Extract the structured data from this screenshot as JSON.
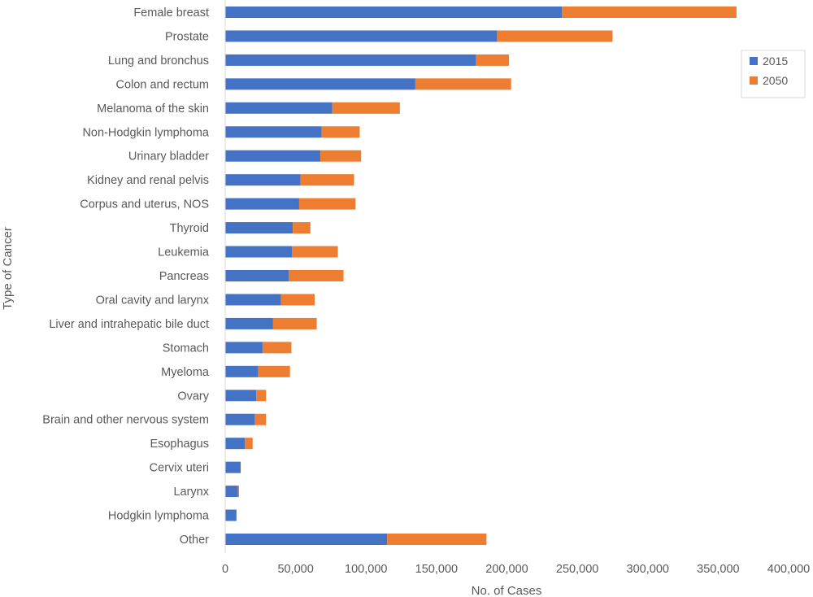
{
  "chart_data": {
    "type": "bar",
    "orientation": "horizontal",
    "stacked": true,
    "xlabel": "No. of Cases",
    "ylabel": "Type of Cancer",
    "xlim": [
      0,
      400000
    ],
    "xticks": [
      "0",
      "50,000",
      "100,000",
      "150,000",
      "200,000",
      "250,000",
      "300,000",
      "350,000",
      "400,000"
    ],
    "grid": false,
    "legend_position": "right",
    "categories": [
      "Female breast",
      "Prostate",
      "Lung and bronchus",
      "Colon and rectum",
      "Melanoma of the skin",
      "Non-Hodgkin lymphoma",
      "Urinary bladder",
      "Kidney and renal pelvis",
      "Corpus and uterus, NOS",
      "Thyroid",
      "Leukemia",
      "Pancreas",
      "Oral cavity and larynx",
      "Liver and intrahepatic bile duct",
      "Stomach",
      "Myeloma",
      "Ovary",
      "Brain and other nervous system",
      "Esophagus",
      "Cervix uteri",
      "Larynx",
      "Hodgkin lymphoma",
      "Other"
    ],
    "series": [
      {
        "name": "2015",
        "color": "#4472C4",
        "values": [
          239000,
          193000,
          178000,
          135000,
          76000,
          68500,
          67500,
          53500,
          52500,
          48000,
          47500,
          45000,
          39500,
          34000,
          26500,
          23500,
          22000,
          21000,
          14000,
          11000,
          9000,
          8000,
          115000
        ]
      },
      {
        "name": "2050",
        "color": "#ED7D31",
        "values": [
          124000,
          82000,
          23500,
          68000,
          48000,
          27000,
          29000,
          38000,
          40000,
          12500,
          32500,
          39000,
          24000,
          31000,
          20500,
          22500,
          7000,
          8000,
          5500,
          0,
          800,
          0,
          70500
        ]
      }
    ]
  }
}
